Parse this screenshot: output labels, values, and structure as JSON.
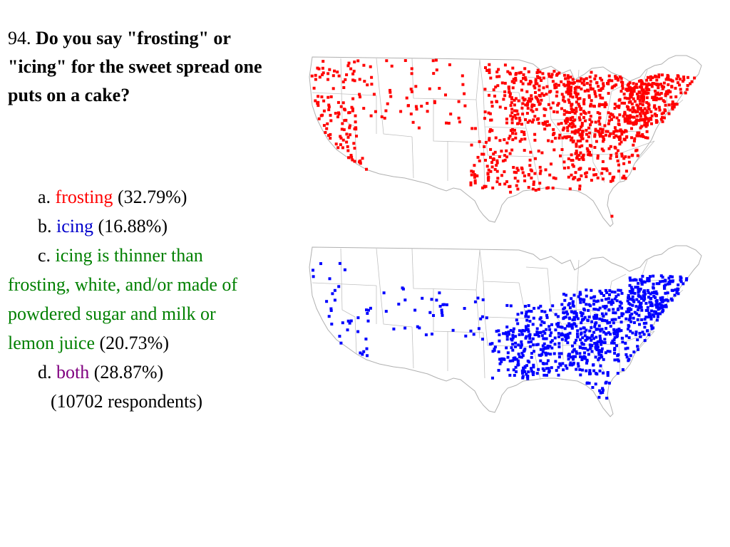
{
  "question": {
    "number": "94.",
    "text": "Do you say \"frosting\" or \"icing\" for the sweet spread one puts on a cake?"
  },
  "answers": [
    {
      "letter": "a.",
      "label": "frosting",
      "percent": "(32.79%)",
      "color": "#ff0000"
    },
    {
      "letter": "b.",
      "label": "icing",
      "percent": "(16.88%)",
      "color": "#0000cc"
    },
    {
      "letter": "c.",
      "label": "icing is thinner than frosting, white, and/or made of powdered sugar and milk or lemon juice",
      "percent": "(20.73%)",
      "color": "#008000"
    },
    {
      "letter": "d.",
      "label": "both",
      "percent": "(28.87%)",
      "color": "#800080"
    }
  ],
  "respondents": "(10702 respondents)",
  "maps": [
    {
      "answer": "frosting",
      "dot_color": "#ff0000"
    },
    {
      "answer": "icing",
      "dot_color": "#0000ff"
    }
  ]
}
